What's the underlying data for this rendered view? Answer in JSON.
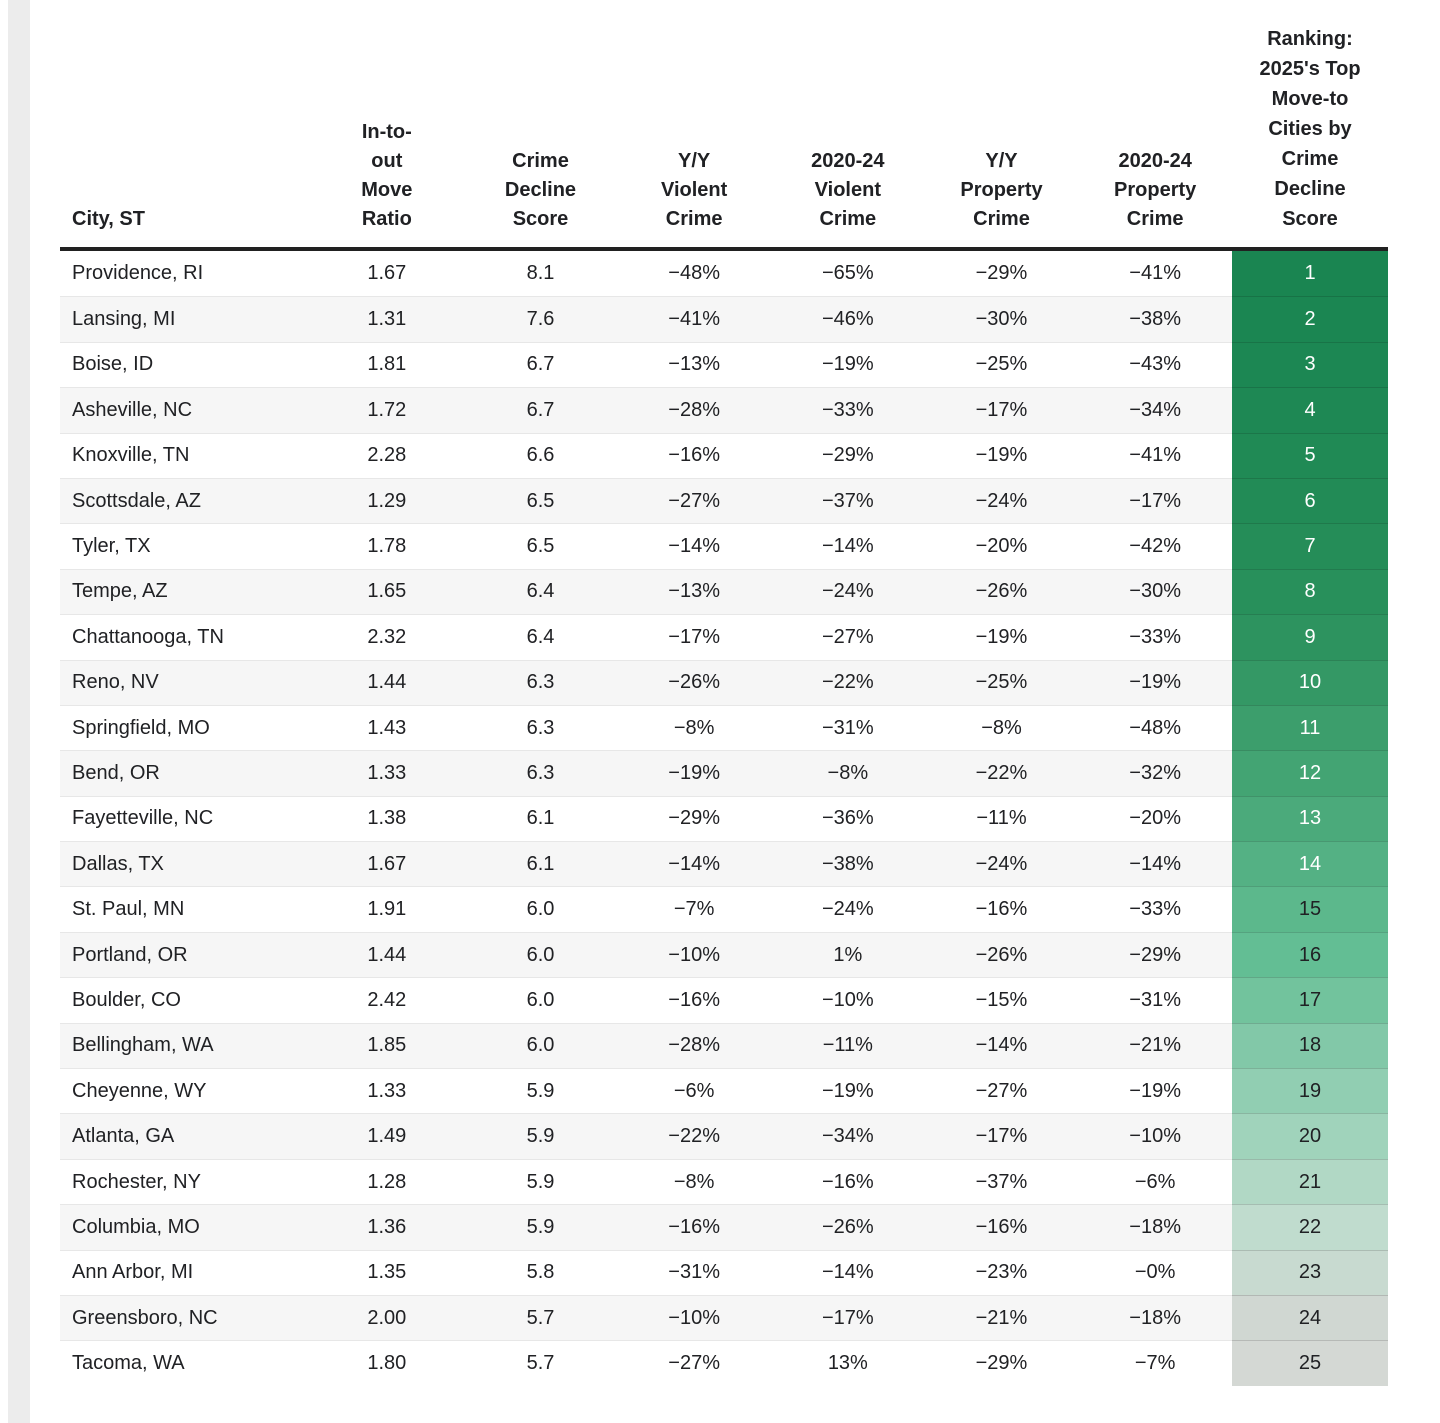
{
  "chart_data": {
    "type": "table",
    "columns": [
      "City, ST",
      "In-to-out Move Ratio",
      "Crime Decline Score",
      "Y/Y Violent Crime",
      "2020-24 Violent Crime",
      "Y/Y Property Crime",
      "2020-24 Property Crime",
      "Ranking: 2025's Top Move-to Cities by Crime Decline Score"
    ],
    "rows": [
      {
        "city": "Providence, RI",
        "move_ratio": "1.67",
        "crime_decline_score": "8.1",
        "yy_violent_crime": "−48%",
        "violent_crime_2020_24": "−65%",
        "yy_property_crime": "−29%",
        "property_crime_2020_24": "−41%",
        "rank": "1",
        "rank_bg": "#1a8551",
        "rank_text": "#ffffff"
      },
      {
        "city": "Lansing, MI",
        "move_ratio": "1.31",
        "crime_decline_score": "7.6",
        "yy_violent_crime": "−41%",
        "violent_crime_2020_24": "−46%",
        "yy_property_crime": "−30%",
        "property_crime_2020_24": "−38%",
        "rank": "2",
        "rank_bg": "#1b8652",
        "rank_text": "#ffffff"
      },
      {
        "city": "Boise, ID",
        "move_ratio": "1.81",
        "crime_decline_score": "6.7",
        "yy_violent_crime": "−13%",
        "violent_crime_2020_24": "−19%",
        "yy_property_crime": "−25%",
        "property_crime_2020_24": "−43%",
        "rank": "3",
        "rank_bg": "#1c8753",
        "rank_text": "#ffffff"
      },
      {
        "city": "Asheville, NC",
        "move_ratio": "1.72",
        "crime_decline_score": "6.7",
        "yy_violent_crime": "−28%",
        "violent_crime_2020_24": "−33%",
        "yy_property_crime": "−17%",
        "property_crime_2020_24": "−34%",
        "rank": "4",
        "rank_bg": "#1e8854",
        "rank_text": "#ffffff"
      },
      {
        "city": "Knoxville, TN",
        "move_ratio": "2.28",
        "crime_decline_score": "6.6",
        "yy_violent_crime": "−16%",
        "violent_crime_2020_24": "−29%",
        "yy_property_crime": "−19%",
        "property_crime_2020_24": "−41%",
        "rank": "5",
        "rank_bg": "#208a55",
        "rank_text": "#ffffff"
      },
      {
        "city": "Scottsdale, AZ",
        "move_ratio": "1.29",
        "crime_decline_score": "6.5",
        "yy_violent_crime": "−27%",
        "violent_crime_2020_24": "−37%",
        "yy_property_crime": "−24%",
        "property_crime_2020_24": "−17%",
        "rank": "6",
        "rank_bg": "#228b56",
        "rank_text": "#ffffff"
      },
      {
        "city": "Tyler, TX",
        "move_ratio": "1.78",
        "crime_decline_score": "6.5",
        "yy_violent_crime": "−14%",
        "violent_crime_2020_24": "−14%",
        "yy_property_crime": "−20%",
        "property_crime_2020_24": "−42%",
        "rank": "7",
        "rank_bg": "#258d58",
        "rank_text": "#ffffff"
      },
      {
        "city": "Tempe, AZ",
        "move_ratio": "1.65",
        "crime_decline_score": "6.4",
        "yy_violent_crime": "−13%",
        "violent_crime_2020_24": "−24%",
        "yy_property_crime": "−26%",
        "property_crime_2020_24": "−30%",
        "rank": "8",
        "rank_bg": "#28905b",
        "rank_text": "#ffffff"
      },
      {
        "city": "Chattanooga, TN",
        "move_ratio": "2.32",
        "crime_decline_score": "6.4",
        "yy_violent_crime": "−17%",
        "violent_crime_2020_24": "−27%",
        "yy_property_crime": "−19%",
        "property_crime_2020_24": "−33%",
        "rank": "9",
        "rank_bg": "#2d935f",
        "rank_text": "#ffffff"
      },
      {
        "city": "Reno, NV",
        "move_ratio": "1.44",
        "crime_decline_score": "6.3",
        "yy_violent_crime": "−26%",
        "violent_crime_2020_24": "−22%",
        "yy_property_crime": "−25%",
        "property_crime_2020_24": "−19%",
        "rank": "10",
        "rank_bg": "#349865",
        "rank_text": "#ffffff"
      },
      {
        "city": "Springfield, MO",
        "move_ratio": "1.43",
        "crime_decline_score": "6.3",
        "yy_violent_crime": "−8%",
        "violent_crime_2020_24": "−31%",
        "yy_property_crime": "−8%",
        "property_crime_2020_24": "−48%",
        "rank": "11",
        "rank_bg": "#3c9e6c",
        "rank_text": "#ffffff"
      },
      {
        "city": "Bend, OR",
        "move_ratio": "1.33",
        "crime_decline_score": "6.3",
        "yy_violent_crime": "−19%",
        "violent_crime_2020_24": "−8%",
        "yy_property_crime": "−22%",
        "property_crime_2020_24": "−32%",
        "rank": "12",
        "rank_bg": "#43a473",
        "rank_text": "#ffffff"
      },
      {
        "city": "Fayetteville, NC",
        "move_ratio": "1.38",
        "crime_decline_score": "6.1",
        "yy_violent_crime": "−29%",
        "violent_crime_2020_24": "−36%",
        "yy_property_crime": "−11%",
        "property_crime_2020_24": "−20%",
        "rank": "13",
        "rank_bg": "#4baa7b",
        "rank_text": "#ffffff"
      },
      {
        "city": "Dallas, TX",
        "move_ratio": "1.67",
        "crime_decline_score": "6.1",
        "yy_violent_crime": "−14%",
        "violent_crime_2020_24": "−38%",
        "yy_property_crime": "−24%",
        "property_crime_2020_24": "−14%",
        "rank": "14",
        "rank_bg": "#54b184",
        "rank_text": "#ffffff"
      },
      {
        "city": "St. Paul, MN",
        "move_ratio": "1.91",
        "crime_decline_score": "6.0",
        "yy_violent_crime": "−7%",
        "violent_crime_2020_24": "−24%",
        "yy_property_crime": "−16%",
        "property_crime_2020_24": "−33%",
        "rank": "15",
        "rank_bg": "#5cb88c",
        "rank_text": "#202124"
      },
      {
        "city": "Portland, OR",
        "move_ratio": "1.44",
        "crime_decline_score": "6.0",
        "yy_violent_crime": "−10%",
        "violent_crime_2020_24": "1%",
        "yy_property_crime": "−26%",
        "property_crime_2020_24": "−29%",
        "rank": "16",
        "rank_bg": "#63be94",
        "rank_text": "#202124"
      },
      {
        "city": "Boulder, CO",
        "move_ratio": "2.42",
        "crime_decline_score": "6.0",
        "yy_violent_crime": "−16%",
        "violent_crime_2020_24": "−10%",
        "yy_property_crime": "−15%",
        "property_crime_2020_24": "−31%",
        "rank": "17",
        "rank_bg": "#72c39d",
        "rank_text": "#202124"
      },
      {
        "city": "Bellingham, WA",
        "move_ratio": "1.85",
        "crime_decline_score": "6.0",
        "yy_violent_crime": "−28%",
        "violent_crime_2020_24": "−11%",
        "yy_property_crime": "−14%",
        "property_crime_2020_24": "−21%",
        "rank": "18",
        "rank_bg": "#82c8a8",
        "rank_text": "#202124"
      },
      {
        "city": "Cheyenne, WY",
        "move_ratio": "1.33",
        "crime_decline_score": "5.9",
        "yy_violent_crime": "−6%",
        "violent_crime_2020_24": "−19%",
        "yy_property_crime": "−27%",
        "property_crime_2020_24": "−19%",
        "rank": "19",
        "rank_bg": "#91ceb2",
        "rank_text": "#202124"
      },
      {
        "city": "Atlanta, GA",
        "move_ratio": "1.49",
        "crime_decline_score": "5.9",
        "yy_violent_crime": "−22%",
        "violent_crime_2020_24": "−34%",
        "yy_property_crime": "−17%",
        "property_crime_2020_24": "−10%",
        "rank": "20",
        "rank_bg": "#a0d3bb",
        "rank_text": "#202124"
      },
      {
        "city": "Rochester, NY",
        "move_ratio": "1.28",
        "crime_decline_score": "5.9",
        "yy_violent_crime": "−8%",
        "violent_crime_2020_24": "−16%",
        "yy_property_crime": "−37%",
        "property_crime_2020_24": "−6%",
        "rank": "21",
        "rank_bg": "#b1d8c5",
        "rank_text": "#202124"
      },
      {
        "city": "Columbia, MO",
        "move_ratio": "1.36",
        "crime_decline_score": "5.9",
        "yy_violent_crime": "−16%",
        "violent_crime_2020_24": "−26%",
        "yy_property_crime": "−16%",
        "property_crime_2020_24": "−18%",
        "rank": "22",
        "rank_bg": "#c0dcce",
        "rank_text": "#202124"
      },
      {
        "city": "Ann Arbor, MI",
        "move_ratio": "1.35",
        "crime_decline_score": "5.8",
        "yy_violent_crime": "−31%",
        "violent_crime_2020_24": "−14%",
        "yy_property_crime": "−23%",
        "property_crime_2020_24": "−0%",
        "rank": "23",
        "rank_bg": "#c8dad0",
        "rank_text": "#202124"
      },
      {
        "city": "Greensboro, NC",
        "move_ratio": "2.00",
        "crime_decline_score": "5.7",
        "yy_violent_crime": "−10%",
        "violent_crime_2020_24": "−17%",
        "yy_property_crime": "−21%",
        "property_crime_2020_24": "−18%",
        "rank": "24",
        "rank_bg": "#d0d7d2",
        "rank_text": "#202124"
      },
      {
        "city": "Tacoma, WA",
        "move_ratio": "1.80",
        "crime_decline_score": "5.7",
        "yy_violent_crime": "−27%",
        "violent_crime_2020_24": "13%",
        "yy_property_crime": "−29%",
        "property_crime_2020_24": "−7%",
        "rank": "25",
        "rank_bg": "#d4d8d4",
        "rank_text": "#202124"
      }
    ],
    "layout_hints": {
      "rank_column_gradient": [
        "#1a8551",
        "#d4d8d4"
      ],
      "row_stripe_color": "#f6f6f6",
      "header_rule_color": "#212121",
      "rank_text_white_through_rank": 14
    }
  }
}
